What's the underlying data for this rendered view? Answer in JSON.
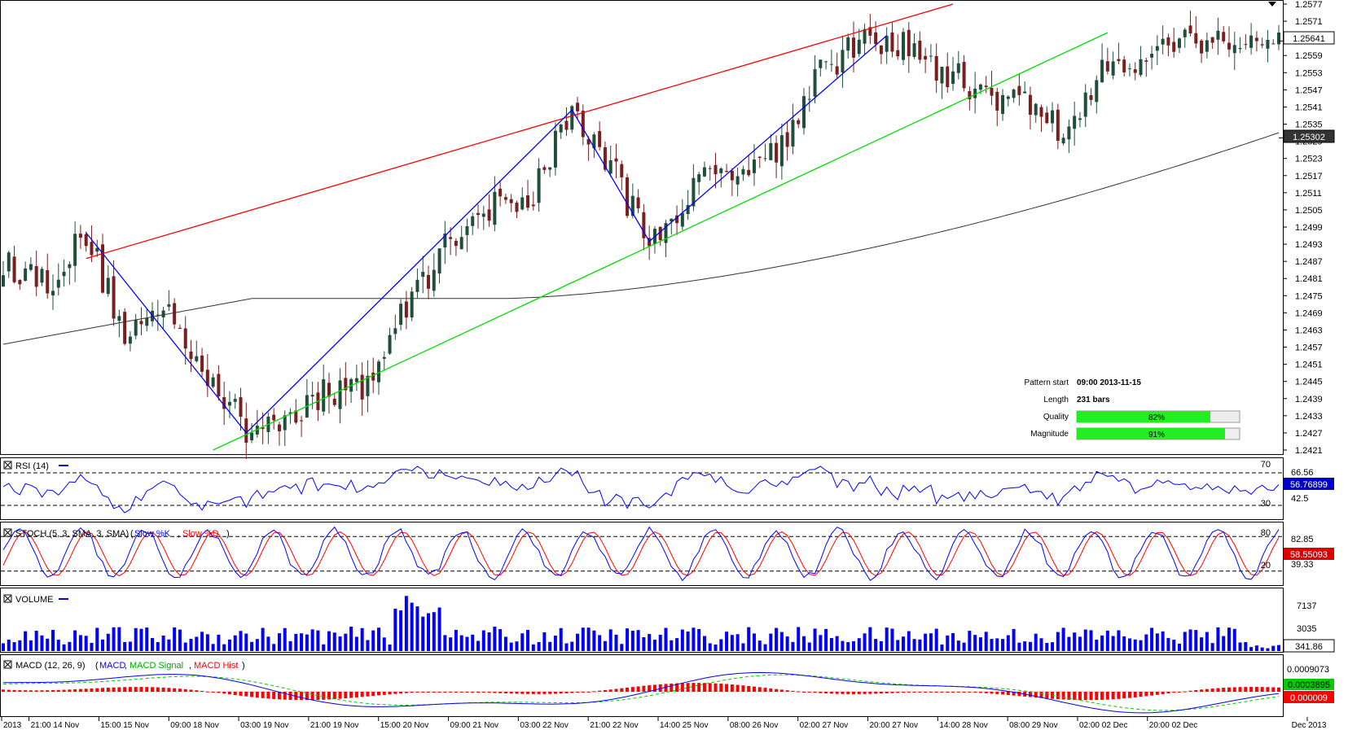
{
  "chart_data": {
    "type": "candlestick",
    "main": {
      "y_ticks": [
        "1.2577",
        "1.2571",
        "1.2565",
        "1.2559",
        "1.2553",
        "1.2547",
        "1.2541",
        "1.2535",
        "1.2529",
        "1.2523",
        "1.2517",
        "1.2511",
        "1.2505",
        "1.2499",
        "1.2493",
        "1.2487",
        "1.2481",
        "1.2475",
        "1.2469",
        "1.2463",
        "1.2457",
        "1.2451",
        "1.2445",
        "1.2439",
        "1.2433",
        "1.2427",
        "1.2421"
      ],
      "ylim": [
        1.2421,
        1.2577
      ],
      "price_label": "1.25641",
      "ma_label": "1.25302",
      "pattern_lines": {
        "resistance": {
          "from": [
            15,
            1.2488
          ],
          "to": [
            172,
            1.2577
          ],
          "color": "#ff0000"
        },
        "support": {
          "from": [
            38,
            1.2421
          ],
          "to": [
            200,
            1.2567
          ],
          "color": "#00dd00"
        },
        "zigzag": {
          "points": [
            [
              15,
              1.2497
            ],
            [
              44,
              1.2427
            ],
            [
              103,
              1.254
            ],
            [
              117,
              1.2494
            ],
            [
              160,
              1.2566
            ]
          ],
          "color": "#0000ff"
        }
      },
      "info": {
        "pattern_start_label": "Pattern start",
        "pattern_start_value": "09:00 2013-11-15",
        "length_label": "Length",
        "length_value": "231 bars",
        "quality_label": "Quality",
        "quality_value": "82%",
        "quality_fraction": 0.82,
        "magnitude_label": "Magnitude",
        "magnitude_value": "91%",
        "magnitude_fraction": 0.91
      }
    },
    "rsi": {
      "title": "RSI (14)",
      "levels": [
        "70",
        "30"
      ],
      "scale_labels": [
        "66.56",
        "42.5"
      ],
      "value_label": "56.76899"
    },
    "stoch": {
      "title": "STOCH (5, 3, SMA, 3, SMA)",
      "k_name": "Slow %K",
      "d_name": "Slow %D",
      "levels": [
        "80",
        "20"
      ],
      "scale_labels": [
        "82.85",
        "39.33"
      ],
      "value_label": "58.55093"
    },
    "volume": {
      "title": "VOLUME",
      "scale_labels": [
        "7137",
        "3035"
      ],
      "value_label": "341.86"
    },
    "macd": {
      "title": "MACD (12, 26, 9)",
      "macd_name": "MACD",
      "signal_name": "MACD Signal",
      "hist_name": "MACD Hist",
      "scale_labels": [
        "0.0009073",
        "0.0003895"
      ],
      "value_label": "0.000009"
    },
    "x_ticks": [
      "2013",
      "21:00 14 Nov",
      "15:00 15 Nov",
      "09:00 18 Nov",
      "03:00 19 Nov",
      "21:00 19 Nov",
      "15:00 20 Nov",
      "09:00 21 Nov",
      "03:00 22 Nov",
      "21:00 22 Nov",
      "14:00 25 Nov",
      "08:00 26 Nov",
      "02:00 27 Nov",
      "20:00 27 Nov",
      "14:00 28 Nov",
      "08:00 29 Nov",
      "02:00 02 Dec",
      "20:00 02 Dec",
      "Dec 2013"
    ],
    "colors": {
      "up": "#1f4f3a",
      "down": "#7a1e1e",
      "ma": "#333333",
      "rsi": "#0000ff",
      "k": "#0000ff",
      "d": "#ff0000",
      "volume": "#0000ff",
      "macd": "#0000ff",
      "signal": "#00cc00",
      "hist": "#ff0000"
    }
  }
}
